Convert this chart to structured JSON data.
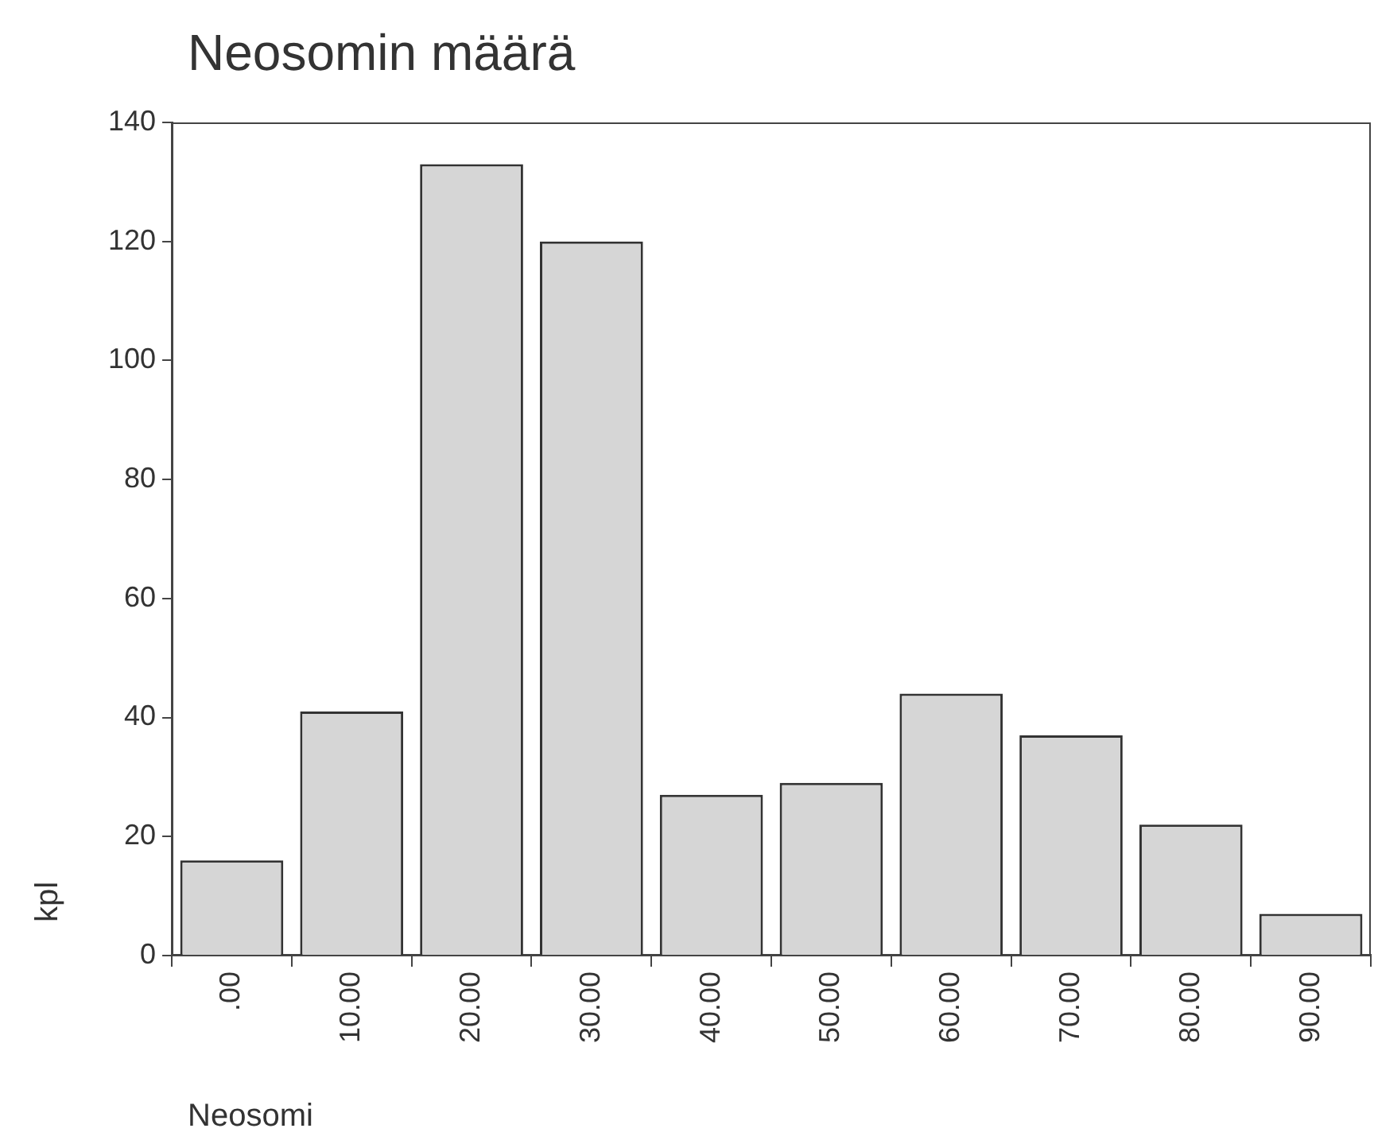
{
  "chart_data": {
    "type": "bar",
    "title": "Neosomin määrä",
    "xlabel": "Neosomi",
    "ylabel": "kpl",
    "categories": [
      ".00",
      "10.00",
      "20.00",
      "30.00",
      "40.00",
      "50.00",
      "60.00",
      "70.00",
      "80.00",
      "90.00"
    ],
    "values": [
      16,
      41,
      133,
      120,
      27,
      29,
      44,
      37,
      22,
      7
    ],
    "color": "#d6d6d6",
    "ylim": [
      0,
      140
    ],
    "yticks": [
      0,
      20,
      40,
      60,
      80,
      100,
      120,
      140
    ],
    "grid": false,
    "legend": false
  }
}
